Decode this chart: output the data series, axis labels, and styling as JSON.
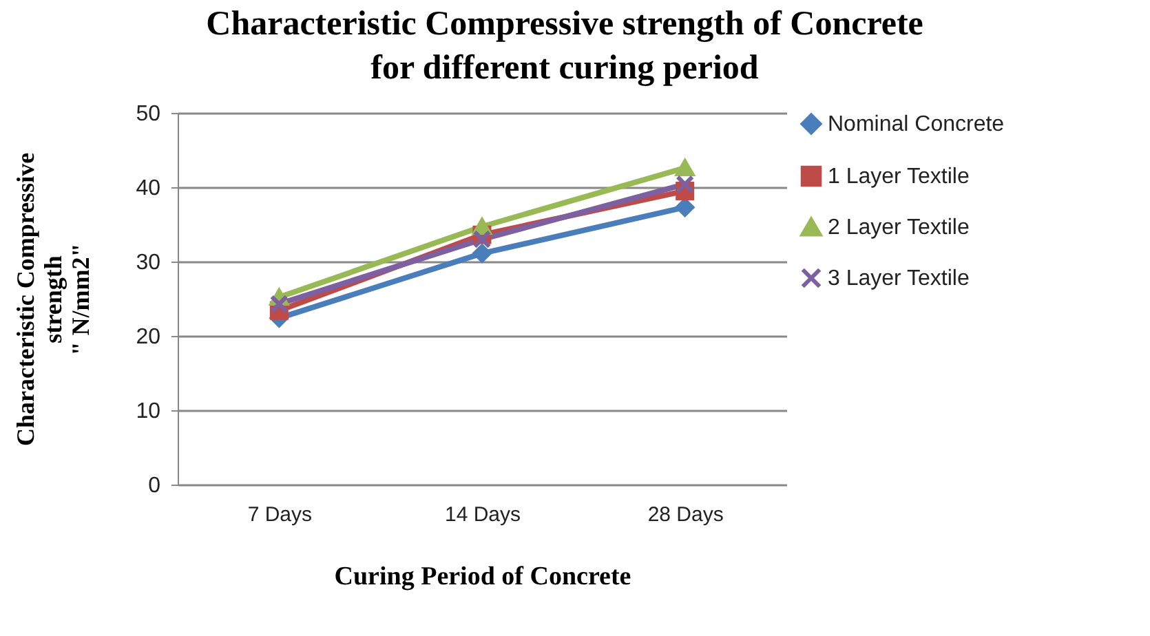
{
  "chart_data": {
    "type": "line",
    "title": "Characteristic Compressive strength of Concrete\nfor different curing period",
    "xlabel": "Curing Period of Concrete",
    "ylabel": "Characteristic Compressive\nstrength\n\" N/mm2\"",
    "categories": [
      "7 Days",
      "14 Days",
      "28 Days"
    ],
    "series": [
      {
        "name": "Nominal Concrete",
        "color": "#4a7ebb",
        "marker": "diamond",
        "values": [
          22.4,
          31.1,
          37.3
        ]
      },
      {
        "name": "1 Layer Textile",
        "color": "#be4b48",
        "marker": "square",
        "values": [
          23.4,
          33.6,
          39.5
        ]
      },
      {
        "name": "2 Layer Textile",
        "color": "#98b954",
        "marker": "triangle",
        "values": [
          25.2,
          34.7,
          42.6
        ]
      },
      {
        "name": "3 Layer Textile",
        "color": "#7d60a0",
        "marker": "cross",
        "values": [
          24.3,
          33.0,
          40.4
        ]
      }
    ],
    "ylim": [
      0,
      50
    ],
    "yticks": [
      0,
      10,
      20,
      30,
      40,
      50
    ],
    "grid": "y",
    "legend": "right",
    "line_style": "solid"
  }
}
